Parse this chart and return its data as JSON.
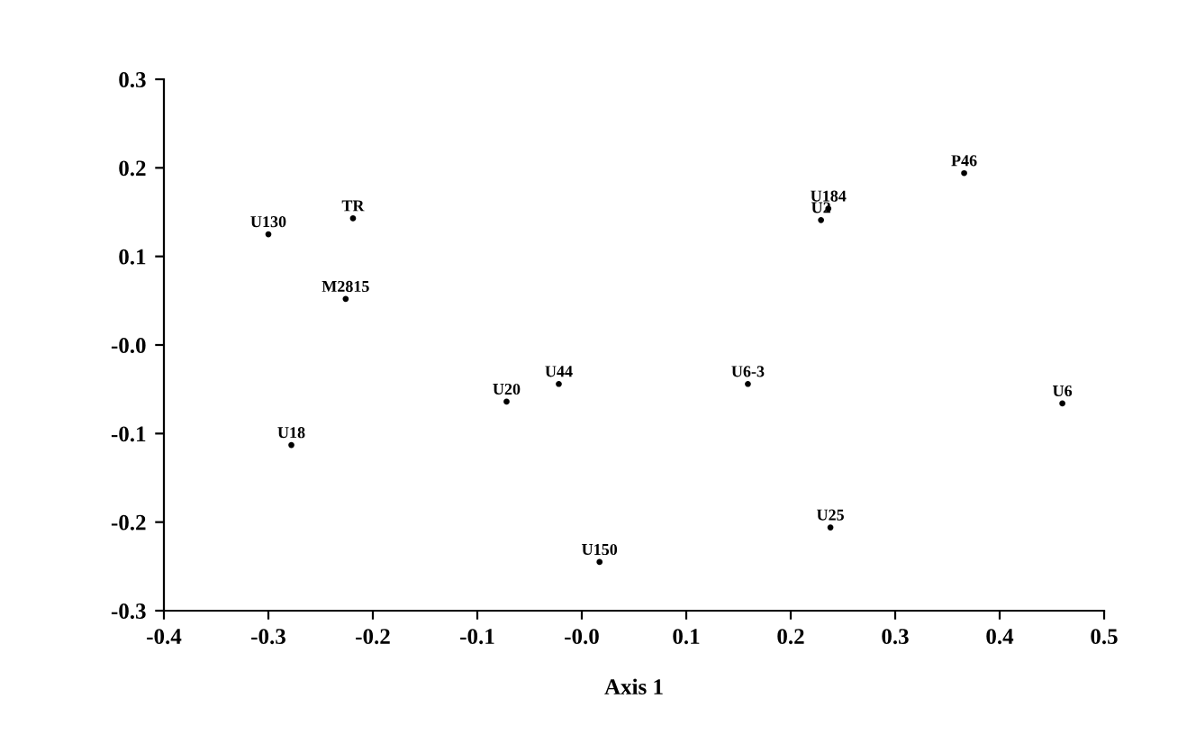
{
  "chart_data": {
    "type": "scatter",
    "xlabel": "Axis 1",
    "x": [
      -0.3,
      -0.219,
      -0.226,
      0.236,
      0.229,
      0.366,
      -0.072,
      -0.278,
      -0.022,
      0.159,
      0.46,
      0.238,
      0.017
    ],
    "values": [
      0.125,
      0.143,
      0.052,
      0.154,
      0.141,
      0.194,
      -0.064,
      -0.113,
      -0.044,
      -0.044,
      -0.066,
      -0.206,
      -0.245
    ],
    "value_labels": [
      "U130",
      "TR",
      "M2815",
      "U184",
      "U2",
      "P46",
      "U20",
      "U18",
      "U44",
      "U6-3",
      "U6",
      "U25",
      "U150"
    ],
    "color": "#000000",
    "marker": "circle",
    "grid": false,
    "legend": false,
    "xlim": [
      -0.4,
      0.5
    ],
    "ylim": [
      -0.3,
      0.3
    ],
    "xticks": [
      -0.4,
      -0.3,
      -0.2,
      -0.1,
      {
        "value": 0,
        "label": "-0.0"
      },
      0.1,
      0.2,
      0.3,
      0.4,
      0.5
    ],
    "yticks": [
      -0.3,
      -0.2,
      -0.1,
      {
        "value": 0,
        "label": "-0.0"
      },
      0.1,
      0.2,
      0.3
    ]
  }
}
